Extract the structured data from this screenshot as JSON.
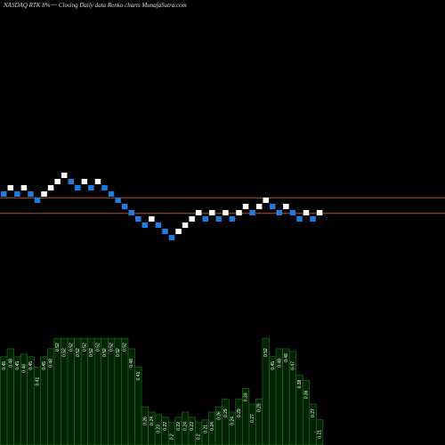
{
  "chart_data": {
    "type": "renko",
    "title": "NASDAQ RTK 8%~~ Closing Daily data Renko charts MunafaSutra.com",
    "values": [
      0,
      1,
      0,
      1,
      0,
      -1,
      0,
      1,
      2,
      3,
      2,
      1,
      2,
      1,
      2,
      1,
      0,
      -1,
      -2,
      -3,
      -4,
      -5,
      -4,
      -5,
      -6,
      -7,
      -6,
      -5,
      -4,
      -3,
      -4,
      -3,
      -4,
      -3,
      -4,
      -3,
      -2,
      -3,
      -2,
      -1,
      -2,
      -3,
      -2,
      -3,
      -4,
      -3,
      -4,
      -3
    ],
    "up_color": "#ffffff",
    "down_color": "#1e7be0",
    "reference_lines": [
      -0.6,
      -3.1
    ],
    "reference_color": "#b5541a",
    "volumes": [
      0.45,
      0.48,
      0.45,
      0.46,
      0.45,
      0.41,
      0.45,
      0.48,
      0.52,
      0.52,
      0.52,
      0.52,
      0.52,
      0.52,
      0.52,
      0.52,
      0.52,
      0.52,
      0.52,
      0.48,
      0.41,
      0.26,
      0.24,
      0.23,
      0.22,
      0.2,
      0.22,
      0.24,
      0.22,
      0.2,
      0.21,
      0.24,
      0.26,
      0.29,
      0.24,
      0.29,
      0.33,
      0.27,
      0.29,
      0.52,
      0.45,
      0.48,
      0.48,
      0.47,
      0.38,
      0.36,
      0.27,
      0.21
    ],
    "volume_fill": "#002200",
    "volume_stroke": "#1f7a1f"
  }
}
